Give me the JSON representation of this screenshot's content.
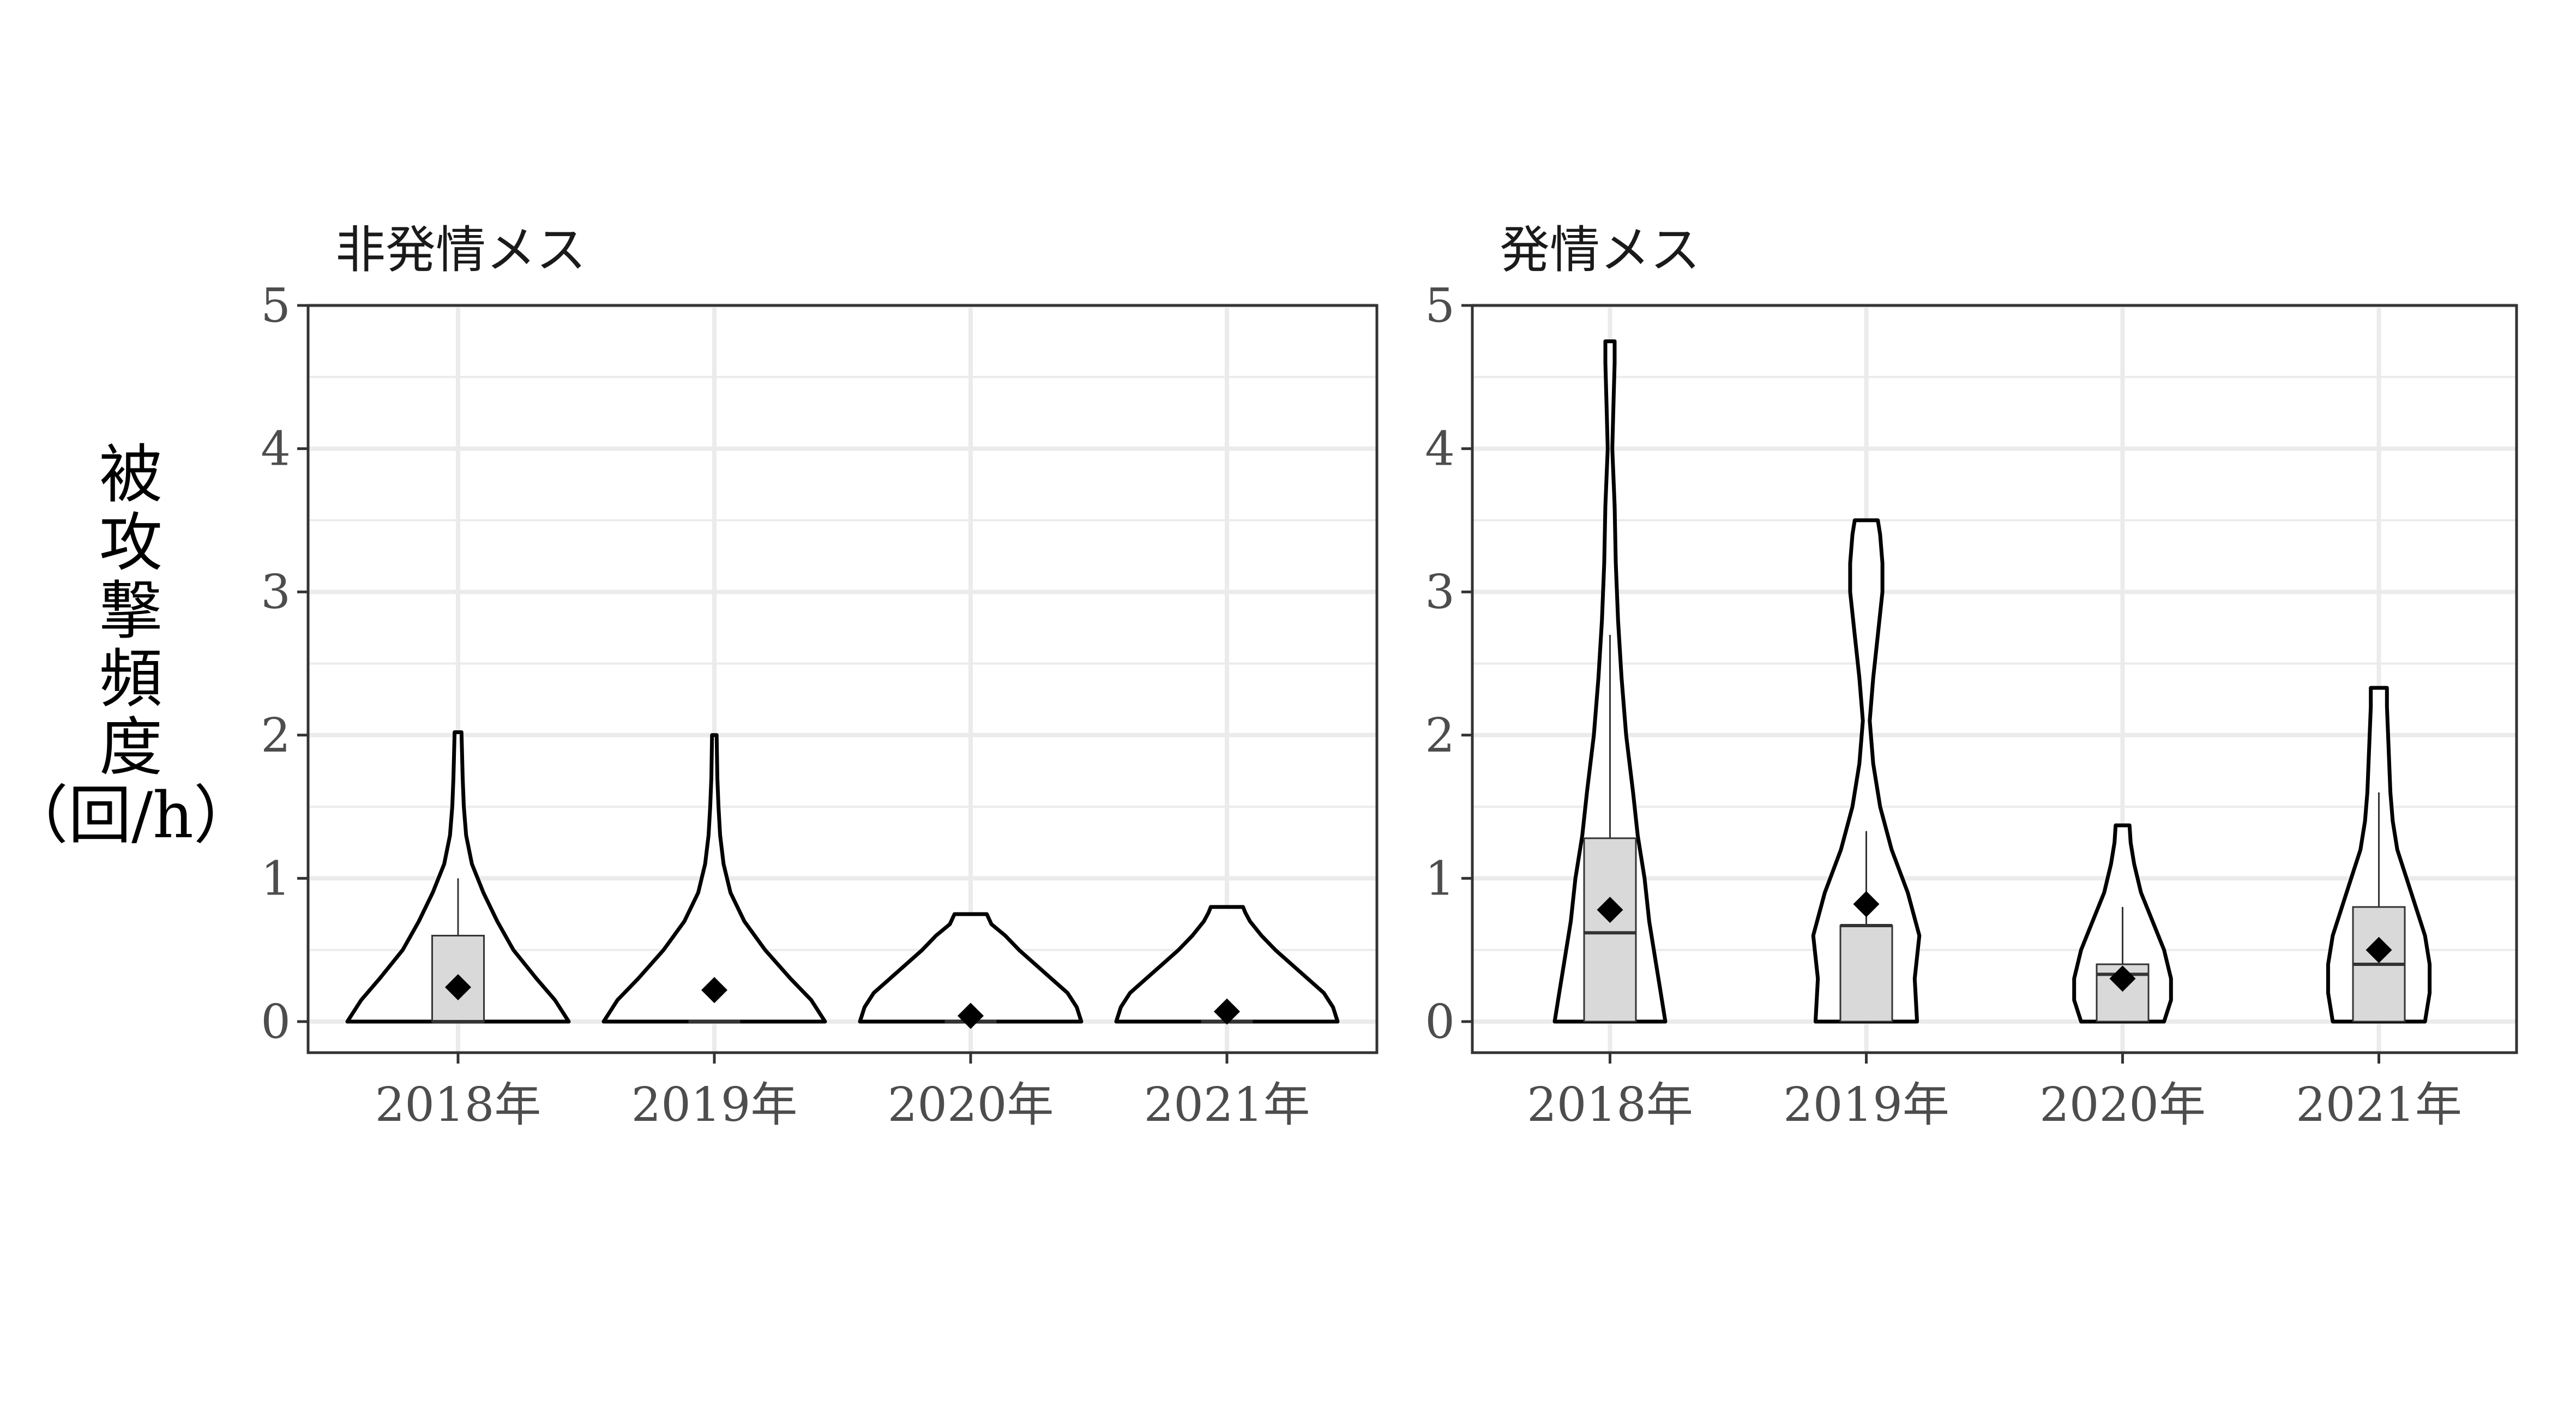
{
  "chart_data": {
    "type": "violin",
    "ylabel_lines": [
      "被",
      "攻",
      "撃",
      "頻",
      "度",
      "（回/h）"
    ],
    "ylim": [
      0,
      5
    ],
    "yticks": [
      0,
      1,
      2,
      3,
      4,
      5
    ],
    "grid": true,
    "categories": [
      "2018年",
      "2019年",
      "2020年",
      "2021年"
    ],
    "panels": [
      {
        "title": "非発情メス",
        "groups": [
          {
            "category": "2018年",
            "violin_max": 2.02,
            "violin_profile": [
              [
                0,
                0.48
              ],
              [
                0.15,
                0.42
              ],
              [
                0.3,
                0.34
              ],
              [
                0.5,
                0.24
              ],
              [
                0.7,
                0.17
              ],
              [
                0.9,
                0.11
              ],
              [
                1.1,
                0.06
              ],
              [
                1.3,
                0.035
              ],
              [
                1.5,
                0.025
              ],
              [
                1.7,
                0.02
              ],
              [
                2.02,
                0.015
              ]
            ],
            "box": {
              "q1": 0,
              "median": 0,
              "q3": 0.6,
              "whisker_low": 0,
              "whisker_high": 1.0
            },
            "mean": 0.24
          },
          {
            "category": "2019年",
            "violin_max": 2.0,
            "violin_profile": [
              [
                0,
                0.48
              ],
              [
                0.15,
                0.42
              ],
              [
                0.3,
                0.33
              ],
              [
                0.5,
                0.22
              ],
              [
                0.7,
                0.13
              ],
              [
                0.9,
                0.07
              ],
              [
                1.1,
                0.04
              ],
              [
                1.3,
                0.025
              ],
              [
                1.5,
                0.018
              ],
              [
                1.7,
                0.013
              ],
              [
                2.0,
                0.01
              ]
            ],
            "box": {
              "q1": 0,
              "median": 0,
              "q3": 0,
              "whisker_low": 0,
              "whisker_high": 0
            },
            "mean": 0.22
          },
          {
            "category": "2020年",
            "violin_max": 0.75,
            "violin_profile": [
              [
                0,
                0.48
              ],
              [
                0.1,
                0.46
              ],
              [
                0.2,
                0.42
              ],
              [
                0.3,
                0.35
              ],
              [
                0.4,
                0.28
              ],
              [
                0.5,
                0.21
              ],
              [
                0.6,
                0.15
              ],
              [
                0.68,
                0.09
              ],
              [
                0.75,
                0.07
              ]
            ],
            "box": {
              "q1": 0,
              "median": 0,
              "q3": 0,
              "whisker_low": 0,
              "whisker_high": 0
            },
            "mean": 0.04
          },
          {
            "category": "2021年",
            "violin_max": 0.8,
            "violin_profile": [
              [
                0,
                0.48
              ],
              [
                0.1,
                0.46
              ],
              [
                0.2,
                0.42
              ],
              [
                0.3,
                0.35
              ],
              [
                0.4,
                0.28
              ],
              [
                0.5,
                0.21
              ],
              [
                0.6,
                0.15
              ],
              [
                0.7,
                0.1
              ],
              [
                0.76,
                0.08
              ],
              [
                0.8,
                0.07
              ]
            ],
            "box": {
              "q1": 0,
              "median": 0,
              "q3": 0,
              "whisker_low": 0,
              "whisker_high": 0
            },
            "mean": 0.07
          }
        ]
      },
      {
        "title": "発情メス",
        "groups": [
          {
            "category": "2018年",
            "violin_max": 4.75,
            "violin_profile": [
              [
                0,
                0.24
              ],
              [
                0.2,
                0.22
              ],
              [
                0.4,
                0.2
              ],
              [
                0.7,
                0.17
              ],
              [
                1.0,
                0.15
              ],
              [
                1.3,
                0.12
              ],
              [
                1.6,
                0.1
              ],
              [
                2.0,
                0.07
              ],
              [
                2.4,
                0.05
              ],
              [
                2.8,
                0.035
              ],
              [
                3.2,
                0.025
              ],
              [
                3.6,
                0.02
              ],
              [
                4.0,
                0.01
              ],
              [
                4.3,
                0.015
              ],
              [
                4.6,
                0.02
              ],
              [
                4.75,
                0.02
              ]
            ],
            "box": {
              "q1": 0,
              "median": 0.62,
              "q3": 1.28,
              "whisker_low": 0,
              "whisker_high": 2.7
            },
            "mean": 0.78
          },
          {
            "category": "2019年",
            "violin_max": 3.5,
            "violin_profile": [
              [
                0,
                0.22
              ],
              [
                0.3,
                0.21
              ],
              [
                0.6,
                0.23
              ],
              [
                0.9,
                0.18
              ],
              [
                1.2,
                0.11
              ],
              [
                1.5,
                0.06
              ],
              [
                1.8,
                0.03
              ],
              [
                2.1,
                0.015
              ],
              [
                2.4,
                0.03
              ],
              [
                2.7,
                0.05
              ],
              [
                3.0,
                0.07
              ],
              [
                3.2,
                0.07
              ],
              [
                3.4,
                0.06
              ],
              [
                3.5,
                0.05
              ]
            ],
            "box": {
              "q1": 0,
              "median": 0.67,
              "q3": 0.67,
              "whisker_low": 0,
              "whisker_high": 1.33
            },
            "mean": 0.82
          },
          {
            "category": "2020年",
            "violin_max": 1.37,
            "violin_profile": [
              [
                0,
                0.18
              ],
              [
                0.15,
                0.21
              ],
              [
                0.3,
                0.21
              ],
              [
                0.5,
                0.18
              ],
              [
                0.7,
                0.13
              ],
              [
                0.9,
                0.08
              ],
              [
                1.1,
                0.05
              ],
              [
                1.25,
                0.035
              ],
              [
                1.37,
                0.03
              ]
            ],
            "box": {
              "q1": 0,
              "median": 0.33,
              "q3": 0.4,
              "whisker_low": 0,
              "whisker_high": 0.8
            },
            "mean": 0.3
          },
          {
            "category": "2021年",
            "violin_max": 2.33,
            "violin_profile": [
              [
                0,
                0.2
              ],
              [
                0.2,
                0.22
              ],
              [
                0.4,
                0.22
              ],
              [
                0.6,
                0.2
              ],
              [
                0.8,
                0.16
              ],
              [
                1.0,
                0.12
              ],
              [
                1.2,
                0.08
              ],
              [
                1.4,
                0.06
              ],
              [
                1.6,
                0.05
              ],
              [
                1.8,
                0.045
              ],
              [
                2.0,
                0.04
              ],
              [
                2.2,
                0.035
              ],
              [
                2.33,
                0.035
              ]
            ],
            "box": {
              "q1": 0,
              "median": 0.4,
              "q3": 0.8,
              "whisker_low": 0,
              "whisker_high": 1.6
            },
            "mean": 0.5
          }
        ]
      }
    ]
  }
}
